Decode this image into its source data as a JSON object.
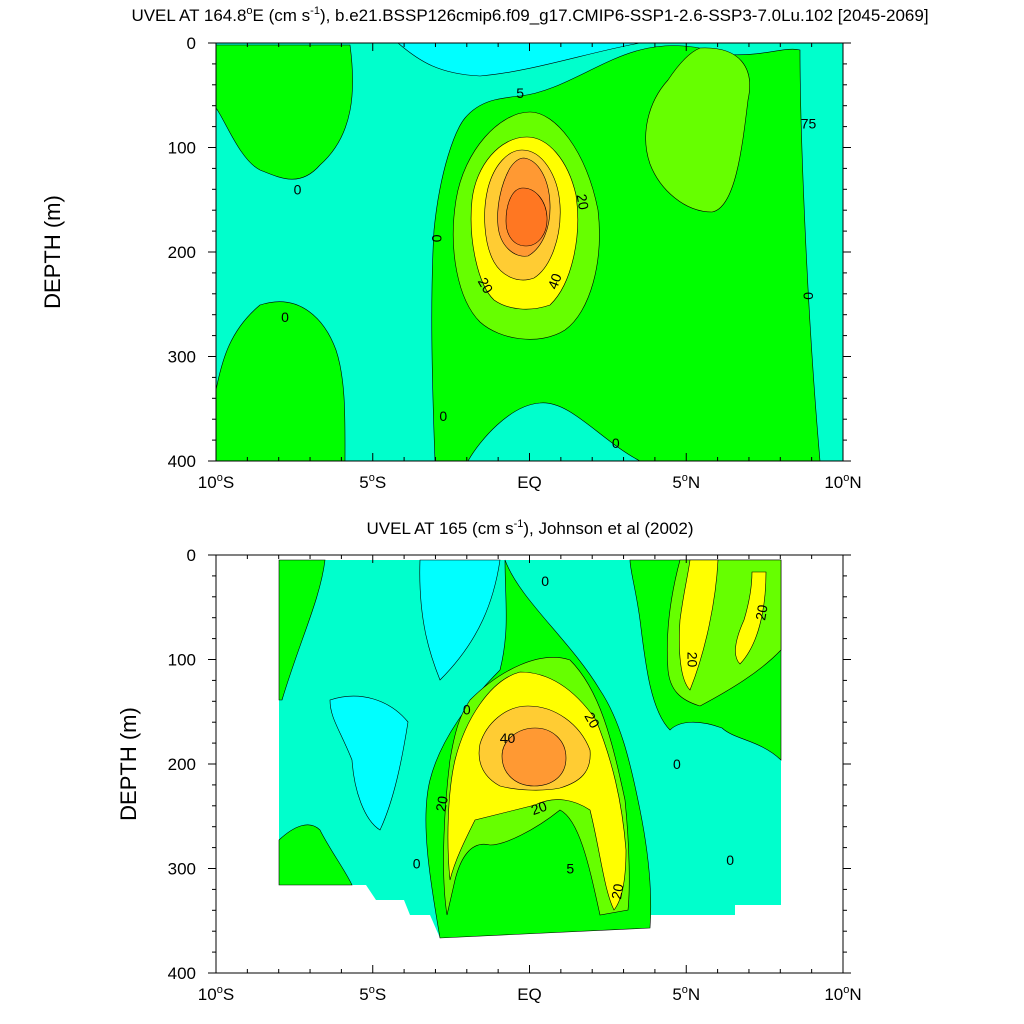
{
  "chart_data": [
    {
      "type": "heatmap",
      "subtype": "filled-contour",
      "title": "UVEL AT 164.8°E (cm s-1), b.e21.BSSP126cmip6.f09_g17.CMIP6-SSP1-2.6-SSP3-7.0Lu.102 [2045-2069]",
      "title_parts": {
        "pre": "UVEL AT 164.8",
        "deg": "o",
        "mid": "E (cm s",
        "sup": "-1",
        "post": "), b.e21.BSSP126cmip6.f09_g17.CMIP6-SSP1-2.6-SSP3-7.0Lu.102 [2045-2069]"
      },
      "xlabel": "",
      "ylabel": "DEPTH (m)",
      "xlim": [
        -10,
        10
      ],
      "ylim": [
        400,
        0
      ],
      "x_ticks": [
        {
          "value": -10,
          "num": "10",
          "sup": "o",
          "hem": "S"
        },
        {
          "value": -5,
          "num": "5",
          "sup": "o",
          "hem": "S"
        },
        {
          "value": 0,
          "num": "EQ",
          "sup": "",
          "hem": ""
        },
        {
          "value": 5,
          "num": "5",
          "sup": "o",
          "hem": "N"
        },
        {
          "value": 10,
          "num": "10",
          "sup": "o",
          "hem": "N"
        }
      ],
      "y_ticks": [
        0,
        100,
        200,
        300,
        400
      ],
      "contour_levels": [
        0,
        10,
        20,
        30,
        40,
        50
      ],
      "colors": {
        "below_0": "#00ffcc",
        "0-10": "#00ff00",
        "10-20": "#66ff00",
        "20-30": "#ffff00",
        "30-40": "#ffcc33",
        "40-50": "#ff9933",
        "above_50": "#ff7722"
      },
      "contour_labels": [
        {
          "text": "0",
          "x": -7.4,
          "y": 140,
          "rot": 0
        },
        {
          "text": "0",
          "x": -7.8,
          "y": 262,
          "rot": 0
        },
        {
          "text": "5",
          "x": -0.3,
          "y": 48,
          "rot": 0
        },
        {
          "text": "0",
          "x": -2.95,
          "y": 187,
          "rot": 90
        },
        {
          "text": "0",
          "x": -2.75,
          "y": 357,
          "rot": 0
        },
        {
          "text": "40",
          "x": 0.8,
          "y": 228,
          "rot": -70
        },
        {
          "text": "20",
          "x": 1.7,
          "y": 152,
          "rot": 80
        },
        {
          "text": "20",
          "x": -1.4,
          "y": 232,
          "rot": 60
        },
        {
          "text": "0",
          "x": 2.75,
          "y": 383,
          "rot": 0
        },
        {
          "text": "75",
          "x": 8.9,
          "y": 77,
          "rot": 0
        },
        {
          "text": "0",
          "x": 8.9,
          "y": 242,
          "rot": 90
        }
      ],
      "core_max_approx": 55,
      "core_location": {
        "lat": -0.2,
        "depth_m": 165
      }
    },
    {
      "type": "heatmap",
      "subtype": "filled-contour",
      "title": "UVEL AT 165 (cm s-1), Johnson et al (2002)",
      "title_parts": {
        "pre": "UVEL AT 165 (cm s",
        "deg": "",
        "mid": "",
        "sup": "-1",
        "post": "), Johnson et al (2002)"
      },
      "xlabel": "",
      "ylabel": "DEPTH (m)",
      "xlim": [
        -10,
        10
      ],
      "ylim": [
        400,
        0
      ],
      "x_ticks": [
        {
          "value": -10,
          "num": "10",
          "sup": "o",
          "hem": "S"
        },
        {
          "value": -5,
          "num": "5",
          "sup": "o",
          "hem": "S"
        },
        {
          "value": 0,
          "num": "EQ",
          "sup": "",
          "hem": ""
        },
        {
          "value": 5,
          "num": "5",
          "sup": "o",
          "hem": "N"
        },
        {
          "value": 10,
          "num": "10",
          "sup": "o",
          "hem": "N"
        }
      ],
      "y_ticks": [
        0,
        100,
        200,
        300,
        400
      ],
      "data_extent": {
        "x": [
          -8,
          8
        ],
        "y": [
          5,
          365
        ]
      },
      "contour_levels": [
        0,
        10,
        20,
        30,
        40
      ],
      "colors": {
        "below_0": "#00ffcc",
        "below_-10": "#00ffff",
        "0-10": "#00ff00",
        "10-20": "#66ff00",
        "20-30": "#ffff00",
        "30-40": "#ffcc33",
        "40-50": "#ff9933"
      },
      "contour_labels": [
        {
          "text": "0",
          "x": 0.5,
          "y": 25,
          "rot": 0
        },
        {
          "text": "20",
          "x": 7.4,
          "y": 55,
          "rot": -80
        },
        {
          "text": "20",
          "x": 5.2,
          "y": 100,
          "rot": 90
        },
        {
          "text": "0",
          "x": -2.0,
          "y": 148,
          "rot": 0
        },
        {
          "text": "20",
          "x": 2.0,
          "y": 158,
          "rot": 60
        },
        {
          "text": "40",
          "x": -0.7,
          "y": 175,
          "rot": 0
        },
        {
          "text": "0",
          "x": 4.7,
          "y": 200,
          "rot": 0
        },
        {
          "text": "20",
          "x": -2.8,
          "y": 238,
          "rot": -80
        },
        {
          "text": "20",
          "x": 0.3,
          "y": 242,
          "rot": -20
        },
        {
          "text": "0",
          "x": -3.6,
          "y": 295,
          "rot": 0
        },
        {
          "text": "5",
          "x": 1.3,
          "y": 300,
          "rot": 0
        },
        {
          "text": "20",
          "x": 2.8,
          "y": 322,
          "rot": -80
        },
        {
          "text": "0",
          "x": 6.4,
          "y": 292,
          "rot": 0
        }
      ],
      "core_max_approx": 45,
      "core_location": {
        "lat": 0.0,
        "depth_m": 185
      }
    }
  ]
}
